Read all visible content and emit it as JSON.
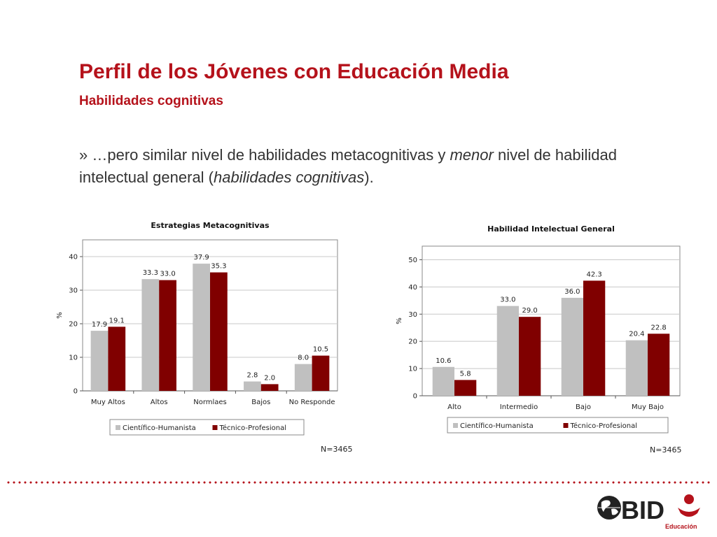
{
  "slide": {
    "title": "Perfil de los Jóvenes con Educación Media",
    "subtitle": "Habilidades cognitivas",
    "bullet": {
      "prefix": "» …pero similar nivel de habilidades metacognitivas y ",
      "emph1": "menor",
      "mid": " nivel de habilidad intelectual general (",
      "emph2": "habilidades cognitivas",
      "suffix": ")."
    },
    "colors": {
      "brand": "#b5121b",
      "series1": "#c0c0c0",
      "series2": "#800000"
    }
  },
  "chart_data": [
    {
      "type": "bar",
      "title": "Estrategias Metacognitivas",
      "ylabel": "%",
      "xlabel": "",
      "categories": [
        "Muy Altos",
        "Altos",
        "Normlaes",
        "Bajos",
        "No Responde"
      ],
      "series": [
        {
          "name": "Científico-Humanista",
          "values": [
            17.9,
            33.3,
            37.9,
            2.8,
            8.0
          ]
        },
        {
          "name": "Técnico-Profesional",
          "values": [
            19.1,
            33.0,
            35.3,
            2.0,
            10.5
          ]
        }
      ],
      "ylim": [
        0,
        45
      ],
      "yticks": [
        0,
        10,
        20,
        30,
        40
      ],
      "grid": true,
      "legend": "bottom",
      "note": "N=3465"
    },
    {
      "type": "bar",
      "title": "Habilidad Intelectual General",
      "ylabel": "%",
      "xlabel": "",
      "categories": [
        "Alto",
        "Intermedio",
        "Bajo",
        "Muy Bajo"
      ],
      "series": [
        {
          "name": "Científico-Humanista",
          "values": [
            10.6,
            33.0,
            36.0,
            20.4
          ]
        },
        {
          "name": "Técnico-Profesional",
          "values": [
            5.8,
            29.0,
            42.3,
            22.8
          ]
        }
      ],
      "ylim": [
        0,
        55
      ],
      "yticks": [
        0,
        10,
        20,
        30,
        40,
        50
      ],
      "grid": true,
      "legend": "bottom",
      "note": "N=3465"
    }
  ],
  "logo": {
    "text": "BID",
    "subtext": "Educación"
  }
}
